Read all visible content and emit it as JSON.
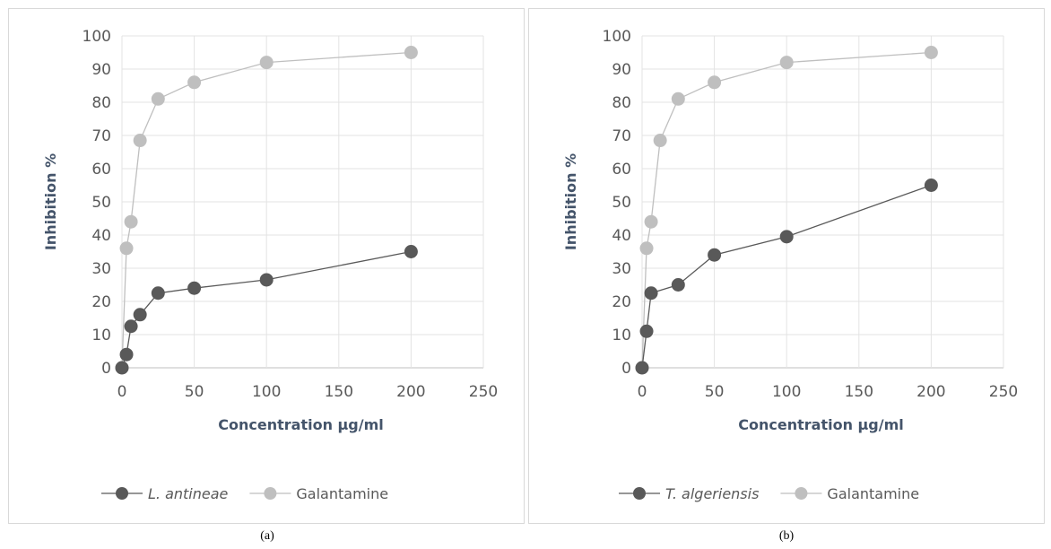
{
  "chart_data": [
    {
      "type": "line",
      "panel_label": "(a)",
      "xlabel": "Concentration µg/ml",
      "ylabel": "Inhibition %",
      "xlim": [
        0,
        250
      ],
      "ylim": [
        0,
        100
      ],
      "xticks": [
        "0",
        "50",
        "100",
        "150",
        "200",
        "250"
      ],
      "yticks": [
        "0",
        "10",
        "20",
        "30",
        "40",
        "50",
        "60",
        "70",
        "80",
        "90",
        "100"
      ],
      "grid": true,
      "legend_position": "bottom",
      "series": [
        {
          "name": "L. antineae",
          "italic": true,
          "color": "#595959",
          "x": [
            0,
            3.125,
            6.25,
            12.5,
            25,
            50,
            100,
            200
          ],
          "y": [
            0,
            4,
            12.5,
            16,
            22.5,
            24,
            26.5,
            35
          ]
        },
        {
          "name": "Galantamine",
          "italic": false,
          "color": "#bfbfbf",
          "x": [
            0,
            3.125,
            6.25,
            12.5,
            25,
            50,
            100,
            200
          ],
          "y": [
            0,
            36,
            44,
            68.5,
            81,
            86,
            92,
            95
          ]
        }
      ]
    },
    {
      "type": "line",
      "panel_label": "(b)",
      "xlabel": "Concentration µg/ml",
      "ylabel": "Inhibition %",
      "xlim": [
        0,
        250
      ],
      "ylim": [
        0,
        100
      ],
      "xticks": [
        "0",
        "50",
        "100",
        "150",
        "200",
        "250"
      ],
      "yticks": [
        "0",
        "10",
        "20",
        "30",
        "40",
        "50",
        "60",
        "70",
        "80",
        "90",
        "100"
      ],
      "grid": true,
      "legend_position": "bottom",
      "series": [
        {
          "name": "T. algeriensis",
          "italic": true,
          "color": "#595959",
          "x": [
            0,
            3.125,
            6.25,
            25,
            50,
            100,
            200
          ],
          "y": [
            0,
            11,
            22.5,
            25,
            34,
            39.5,
            55
          ]
        },
        {
          "name": "Galantamine",
          "italic": false,
          "color": "#bfbfbf",
          "x": [
            0,
            3.125,
            6.25,
            12.5,
            25,
            50,
            100,
            200
          ],
          "y": [
            0,
            36,
            44,
            68.5,
            81,
            86,
            92,
            95
          ]
        }
      ]
    }
  ]
}
